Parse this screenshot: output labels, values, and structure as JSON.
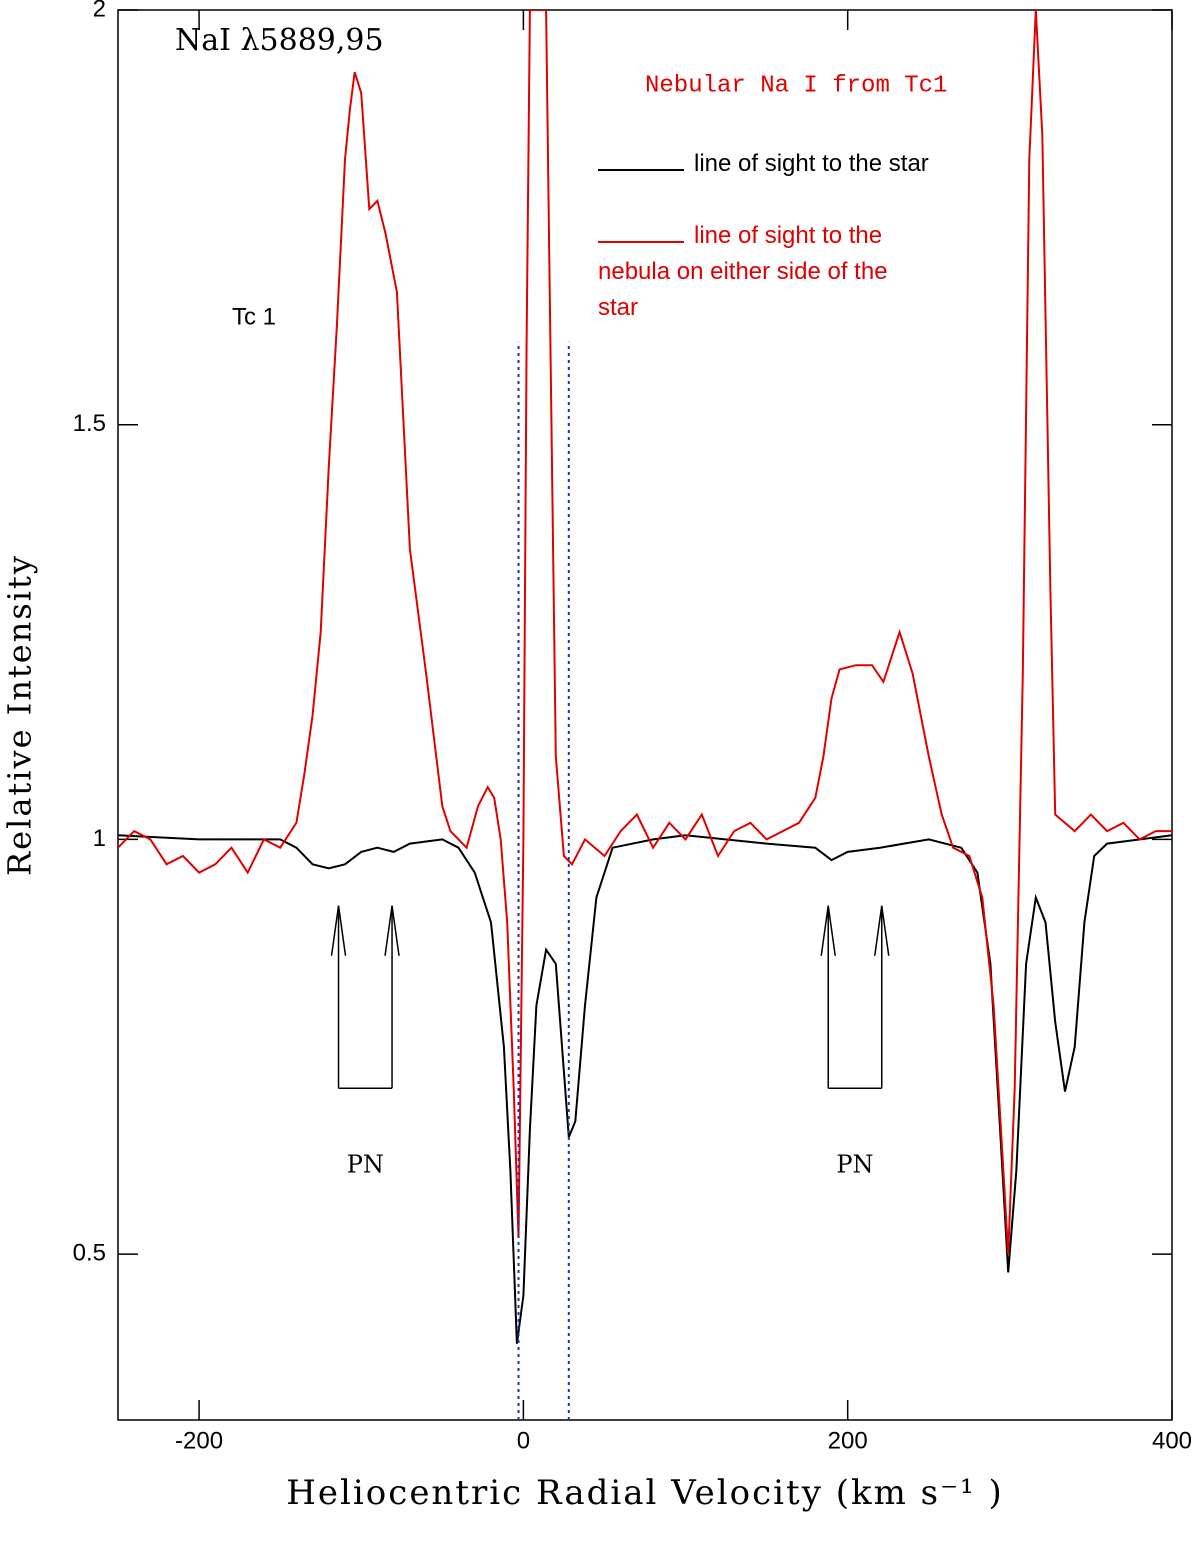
{
  "chart_data": {
    "type": "line",
    "title": "NaI λ5889,95",
    "subtitle": "Nebular Na I from Tc1",
    "object_label": "Tc 1",
    "xlabel": "Heliocentric Radial Velocity (km s⁻¹ )",
    "ylabel": "Relative Intensity",
    "xlim": [
      -250,
      400
    ],
    "ylim": [
      0.3,
      2
    ],
    "xticks": [
      -200,
      0,
      200,
      400
    ],
    "yticks": [
      0.5,
      1,
      1.5,
      2
    ],
    "grid": false,
    "series": [
      {
        "name": "line of sight to the star",
        "color": "#000000",
        "x": [
          -250,
          -200,
          -150,
          -140,
          -130,
          -120,
          -110,
          -100,
          -90,
          -80,
          -70,
          -50,
          -40,
          -30,
          -20,
          -12,
          -8,
          -4,
          0,
          4,
          8,
          14,
          20,
          25,
          28,
          32,
          38,
          45,
          55,
          80,
          100,
          150,
          180,
          190,
          200,
          220,
          250,
          270,
          280,
          288,
          294,
          299,
          304,
          310,
          316,
          322,
          328,
          334,
          340,
          346,
          352,
          360,
          400
        ],
        "values": [
          1.005,
          1.0,
          1.0,
          0.99,
          0.97,
          0.965,
          0.97,
          0.985,
          0.99,
          0.985,
          0.995,
          1.0,
          0.99,
          0.96,
          0.9,
          0.75,
          0.6,
          0.392,
          0.45,
          0.65,
          0.8,
          0.867,
          0.85,
          0.72,
          0.641,
          0.66,
          0.8,
          0.93,
          0.99,
          1.0,
          1.005,
          0.995,
          0.99,
          0.975,
          0.985,
          0.99,
          1.0,
          0.99,
          0.96,
          0.85,
          0.65,
          0.478,
          0.6,
          0.85,
          0.93,
          0.9,
          0.78,
          0.696,
          0.75,
          0.9,
          0.98,
          0.995,
          1.005
        ]
      },
      {
        "name": "line of sight to the nebula on either side of the star",
        "color": "#e00000",
        "x": [
          -250,
          -240,
          -230,
          -220,
          -210,
          -200,
          -190,
          -180,
          -170,
          -160,
          -150,
          -140,
          -135,
          -130,
          -125,
          -120,
          -115,
          -110,
          -107,
          -104,
          -100,
          -95,
          -90,
          -85,
          -78,
          -70,
          -60,
          -50,
          -45,
          -35,
          -28,
          -22,
          -18,
          -14,
          -10,
          -6,
          -3,
          0,
          2,
          4,
          14,
          16,
          20,
          25,
          30,
          38,
          50,
          60,
          70,
          80,
          90,
          100,
          110,
          120,
          130,
          140,
          150,
          160,
          170,
          180,
          185,
          190,
          195,
          205,
          215,
          222,
          232,
          240,
          250,
          258,
          265,
          275,
          283,
          290,
          296,
          299,
          303,
          308,
          312,
          316,
          320,
          325,
          328,
          340,
          350,
          360,
          370,
          380,
          390,
          400
        ],
        "values": [
          0.99,
          1.01,
          1.0,
          0.97,
          0.98,
          0.96,
          0.97,
          0.99,
          0.96,
          1.0,
          0.99,
          1.02,
          1.08,
          1.15,
          1.25,
          1.45,
          1.62,
          1.82,
          1.88,
          1.925,
          1.9,
          1.76,
          1.77,
          1.73,
          1.66,
          1.35,
          1.2,
          1.04,
          1.01,
          0.99,
          1.04,
          1.063,
          1.05,
          1.0,
          0.9,
          0.7,
          0.52,
          1.0,
          1.6,
          2.0,
          2.0,
          1.7,
          1.1,
          0.98,
          0.97,
          1.0,
          0.98,
          1.01,
          1.03,
          0.99,
          1.02,
          1.0,
          1.03,
          0.98,
          1.01,
          1.02,
          1.0,
          1.01,
          1.02,
          1.05,
          1.1,
          1.17,
          1.205,
          1.21,
          1.21,
          1.19,
          1.25,
          1.2,
          1.1,
          1.03,
          0.99,
          0.98,
          0.93,
          0.8,
          0.6,
          0.5,
          0.7,
          1.2,
          1.82,
          2.0,
          1.85,
          1.3,
          1.03,
          1.01,
          1.03,
          1.01,
          1.02,
          1.0,
          1.01,
          1.01
        ]
      }
    ],
    "vlines": [
      {
        "x": -3,
        "y": [
          0.3,
          1.6
        ]
      },
      {
        "x": 28,
        "y": [
          0.3,
          1.6
        ]
      }
    ],
    "annotations": [
      {
        "text": "PN",
        "x": [
          -114,
          -81
        ],
        "y": [
          0.7,
          0.92
        ]
      },
      {
        "text": "PN",
        "x": [
          188,
          221
        ],
        "y": [
          0.7,
          0.92
        ]
      }
    ]
  }
}
